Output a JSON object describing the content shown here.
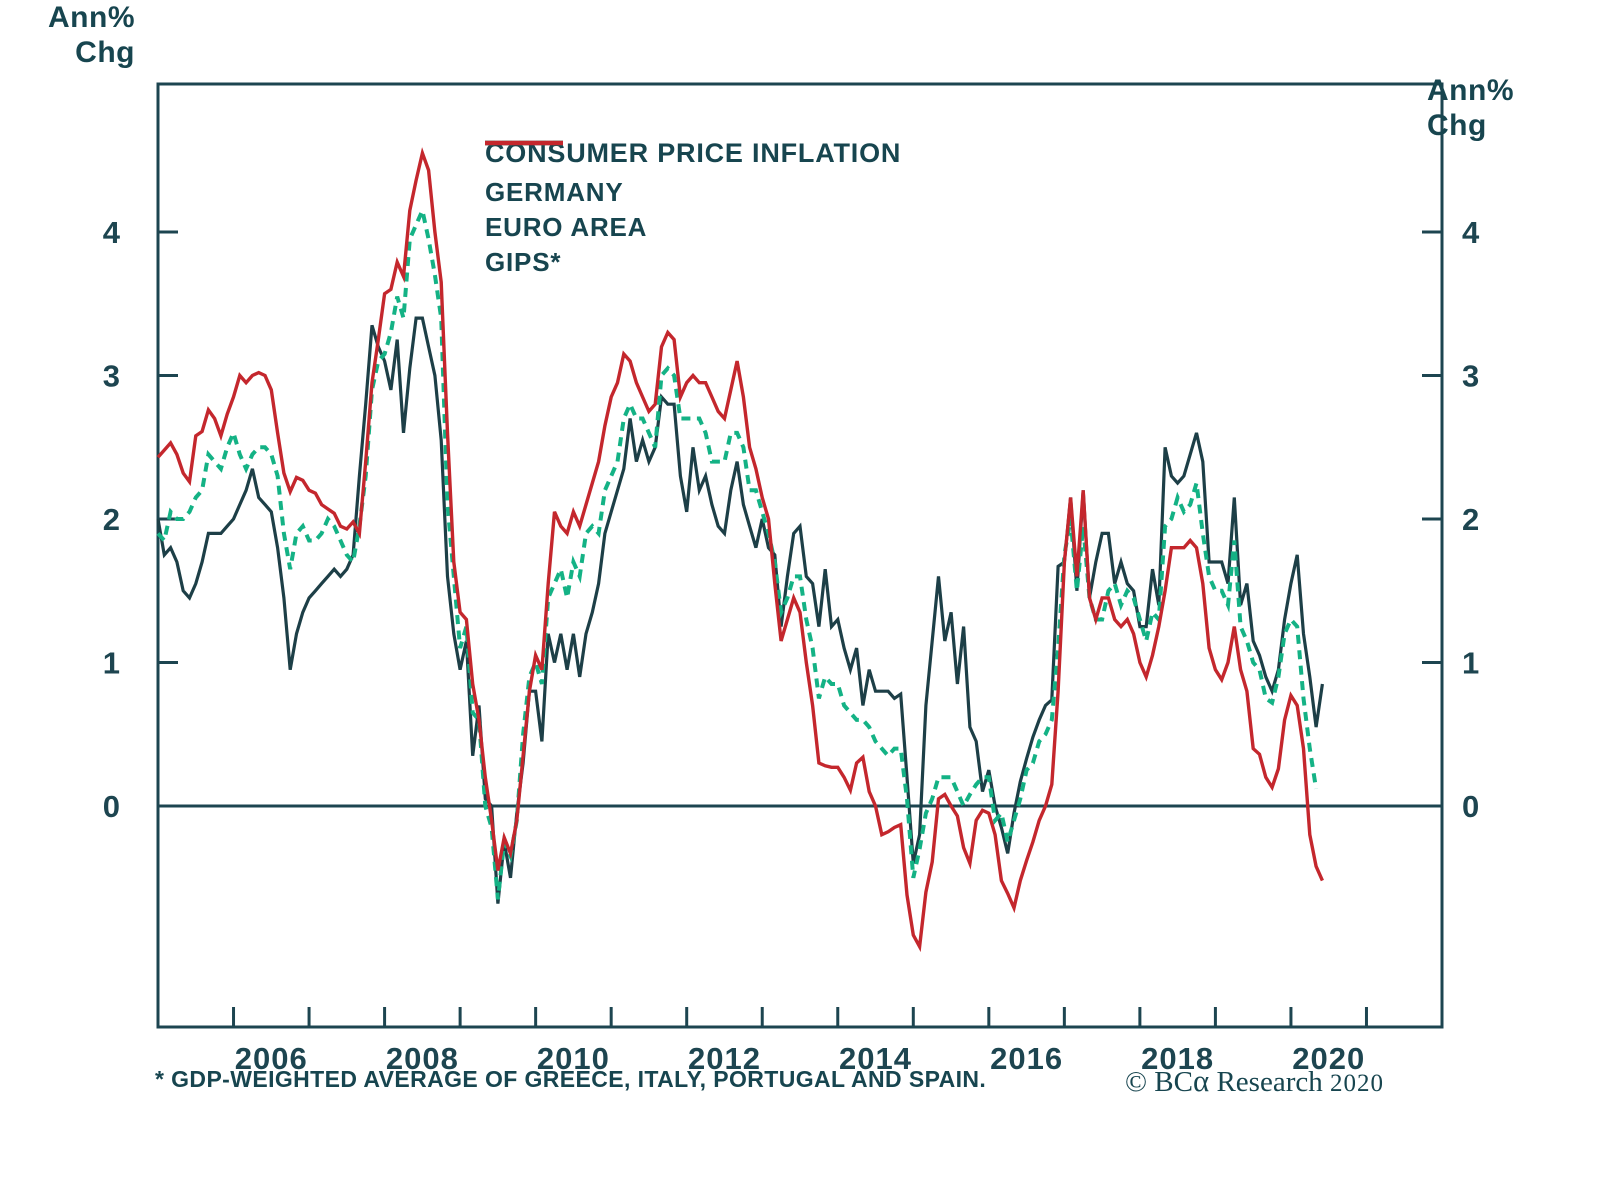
{
  "axis_unit": {
    "line1": "Ann%",
    "line2": "Chg"
  },
  "legend": {
    "title": "CONSUMER PRICE INFLATION",
    "entries": [
      {
        "label": "GERMANY",
        "color": "#1d3f47",
        "dash": null
      },
      {
        "label": "EURO AREA",
        "color": "#14b285",
        "dash": [
          10,
          7
        ]
      },
      {
        "label": "GIPS*",
        "color": "#c4272d",
        "dash": null
      }
    ]
  },
  "footnote": "* GDP-WEIGHTED AVERAGE OF GREECE, ITALY, PORTUGAL AND SPAIN.",
  "brand": {
    "copyright": "© BC",
    "alpha": "α",
    "rest": " Research",
    "year": "2020"
  },
  "chart_data": {
    "type": "line",
    "title": "CONSUMER PRICE INFLATION",
    "ylabel": "Ann% Chg",
    "frequency": "monthly",
    "x_start_year": 2005,
    "xlim": [
      2005.0,
      2022.0
    ],
    "ylim": [
      -1.54,
      5.03
    ],
    "y_ticks": [
      0,
      1,
      2,
      3,
      4
    ],
    "x_tick_years": [
      2006,
      2007,
      2008,
      2009,
      2010,
      2011,
      2012,
      2013,
      2014,
      2015,
      2016,
      2017,
      2018,
      2019,
      2020,
      2021
    ],
    "x_label_years": [
      2006,
      2008,
      2010,
      2012,
      2014,
      2016,
      2018,
      2020
    ],
    "grid": false,
    "zero_line": true,
    "legend_position": "top-center",
    "series": [
      {
        "name": "GERMANY",
        "color": "#1d3f47",
        "dash": null,
        "width": 3.2,
        "values": [
          2.0,
          1.75,
          1.8,
          1.7,
          1.5,
          1.45,
          1.55,
          1.7,
          1.9,
          1.9,
          1.9,
          1.95,
          2.0,
          2.1,
          2.2,
          2.35,
          2.15,
          2.1,
          2.05,
          1.8,
          1.45,
          0.95,
          1.2,
          1.35,
          1.45,
          1.5,
          1.55,
          1.6,
          1.65,
          1.6,
          1.65,
          1.75,
          2.3,
          2.8,
          3.35,
          3.2,
          3.1,
          2.9,
          3.25,
          2.6,
          3.05,
          3.4,
          3.4,
          3.2,
          3.0,
          2.55,
          1.6,
          1.2,
          0.95,
          1.15,
          0.35,
          0.7,
          0.05,
          0.0,
          -0.68,
          -0.25,
          -0.5,
          -0.05,
          0.3,
          0.8,
          0.8,
          0.45,
          1.2,
          1.0,
          1.2,
          0.95,
          1.2,
          0.9,
          1.2,
          1.35,
          1.55,
          1.9,
          2.05,
          2.2,
          2.35,
          2.7,
          2.4,
          2.55,
          2.4,
          2.5,
          2.85,
          2.8,
          2.8,
          2.3,
          2.05,
          2.5,
          2.2,
          2.3,
          2.1,
          1.95,
          1.9,
          2.2,
          2.4,
          2.1,
          1.95,
          1.8,
          2.0,
          1.8,
          1.75,
          1.25,
          1.6,
          1.9,
          1.95,
          1.6,
          1.55,
          1.25,
          1.65,
          1.25,
          1.3,
          1.1,
          0.95,
          1.1,
          0.7,
          0.95,
          0.8,
          0.8,
          0.8,
          0.75,
          0.78,
          0.2,
          -0.4,
          -0.2,
          0.7,
          1.15,
          1.6,
          1.15,
          1.35,
          0.85,
          1.25,
          0.55,
          0.45,
          0.1,
          0.25,
          0.0,
          -0.15,
          -0.33,
          -0.05,
          0.17,
          0.33,
          0.48,
          0.6,
          0.7,
          0.74,
          1.67,
          1.7,
          2.15,
          1.5,
          2.2,
          1.45,
          1.7,
          1.9,
          1.9,
          1.55,
          1.7,
          1.55,
          1.5,
          1.25,
          1.25,
          1.65,
          1.4,
          2.5,
          2.3,
          2.25,
          2.3,
          2.45,
          2.6,
          2.4,
          1.7,
          1.7,
          1.7,
          1.55,
          2.15,
          1.4,
          1.55,
          1.15,
          1.05,
          0.9,
          0.8,
          0.95,
          1.3,
          1.55,
          1.75,
          1.2,
          0.9,
          0.55,
          0.85
        ]
      },
      {
        "name": "EURO AREA",
        "color": "#14b285",
        "dash": [
          9,
          6.5
        ],
        "width": 4,
        "values": [
          1.9,
          1.85,
          2.05,
          2.0,
          2.0,
          2.05,
          2.15,
          2.2,
          2.45,
          2.4,
          2.35,
          2.5,
          2.6,
          2.45,
          2.35,
          2.45,
          2.5,
          2.5,
          2.45,
          2.3,
          1.9,
          1.65,
          1.9,
          1.95,
          1.85,
          1.85,
          1.9,
          2.0,
          1.95,
          1.85,
          1.75,
          1.7,
          1.95,
          2.3,
          2.9,
          3.1,
          3.15,
          3.3,
          3.55,
          3.4,
          3.95,
          4.05,
          4.15,
          3.95,
          3.7,
          3.4,
          2.1,
          1.6,
          1.1,
          1.25,
          0.65,
          0.6,
          0.0,
          -0.15,
          -0.65,
          -0.25,
          -0.35,
          -0.1,
          0.5,
          0.9,
          1.0,
          0.85,
          1.45,
          1.55,
          1.65,
          1.45,
          1.7,
          1.6,
          1.9,
          1.95,
          1.9,
          2.2,
          2.3,
          2.4,
          2.7,
          2.8,
          2.7,
          2.7,
          2.6,
          2.5,
          3.0,
          3.05,
          3.0,
          2.7,
          2.7,
          2.7,
          2.7,
          2.6,
          2.4,
          2.4,
          2.4,
          2.6,
          2.6,
          2.5,
          2.2,
          2.2,
          2.05,
          1.9,
          1.7,
          1.35,
          1.45,
          1.6,
          1.6,
          1.3,
          1.1,
          0.75,
          0.9,
          0.85,
          0.85,
          0.7,
          0.65,
          0.6,
          0.6,
          0.55,
          0.45,
          0.4,
          0.35,
          0.4,
          0.4,
          0.05,
          -0.5,
          -0.3,
          -0.05,
          0.05,
          0.2,
          0.2,
          0.2,
          0.1,
          0.0,
          0.08,
          0.15,
          0.2,
          0.2,
          -0.1,
          -0.05,
          -0.25,
          -0.1,
          0.05,
          0.25,
          0.3,
          0.45,
          0.5,
          0.6,
          1.1,
          1.75,
          2.0,
          1.5,
          1.95,
          1.45,
          1.3,
          1.3,
          1.5,
          1.55,
          1.4,
          1.5,
          1.45,
          1.3,
          1.15,
          1.35,
          1.3,
          1.95,
          2.0,
          2.15,
          2.05,
          2.1,
          2.25,
          1.9,
          1.6,
          1.5,
          1.5,
          1.4,
          1.85,
          1.25,
          1.15,
          1.0,
          0.95,
          0.75,
          0.72,
          0.9,
          1.2,
          1.3,
          1.25,
          0.75,
          0.4,
          0.12
        ]
      },
      {
        "name": "GIPS*",
        "color": "#c4272d",
        "dash": null,
        "width": 3.4,
        "values": [
          2.43,
          2.48,
          2.53,
          2.45,
          2.32,
          2.26,
          2.58,
          2.61,
          2.76,
          2.7,
          2.58,
          2.73,
          2.85,
          3.0,
          2.95,
          3.0,
          3.02,
          3.0,
          2.9,
          2.6,
          2.32,
          2.19,
          2.29,
          2.27,
          2.2,
          2.18,
          2.1,
          2.07,
          2.04,
          1.95,
          1.93,
          1.98,
          1.9,
          2.4,
          2.95,
          3.25,
          3.57,
          3.6,
          3.79,
          3.69,
          4.15,
          4.36,
          4.55,
          4.43,
          4.0,
          3.65,
          2.6,
          1.7,
          1.35,
          1.3,
          0.85,
          0.6,
          0.2,
          -0.1,
          -0.45,
          -0.22,
          -0.33,
          -0.1,
          0.35,
          0.8,
          1.05,
          0.95,
          1.55,
          2.05,
          1.95,
          1.9,
          2.05,
          1.95,
          2.1,
          2.25,
          2.4,
          2.65,
          2.85,
          2.95,
          3.15,
          3.1,
          2.95,
          2.85,
          2.75,
          2.8,
          3.2,
          3.3,
          3.25,
          2.85,
          2.95,
          3.0,
          2.95,
          2.95,
          2.85,
          2.75,
          2.7,
          2.9,
          3.1,
          2.85,
          2.5,
          2.35,
          2.15,
          2.0,
          1.55,
          1.15,
          1.3,
          1.45,
          1.35,
          1.0,
          0.7,
          0.3,
          0.28,
          0.27,
          0.27,
          0.2,
          0.11,
          0.3,
          0.34,
          0.1,
          0.0,
          -0.2,
          -0.18,
          -0.15,
          -0.13,
          -0.62,
          -0.9,
          -0.98,
          -0.6,
          -0.39,
          0.05,
          0.08,
          0.0,
          -0.07,
          -0.29,
          -0.4,
          -0.1,
          -0.03,
          -0.05,
          -0.2,
          -0.52,
          -0.61,
          -0.71,
          -0.52,
          -0.38,
          -0.25,
          -0.1,
          0.0,
          0.15,
          0.8,
          1.7,
          2.15,
          1.6,
          2.2,
          1.45,
          1.3,
          1.45,
          1.45,
          1.3,
          1.25,
          1.3,
          1.2,
          1.0,
          0.9,
          1.05,
          1.25,
          1.5,
          1.8,
          1.8,
          1.8,
          1.85,
          1.8,
          1.55,
          1.1,
          0.95,
          0.88,
          1.0,
          1.25,
          0.95,
          0.8,
          0.4,
          0.36,
          0.2,
          0.13,
          0.26,
          0.6,
          0.77,
          0.7,
          0.4,
          -0.2,
          -0.42,
          -0.52
        ]
      }
    ]
  }
}
